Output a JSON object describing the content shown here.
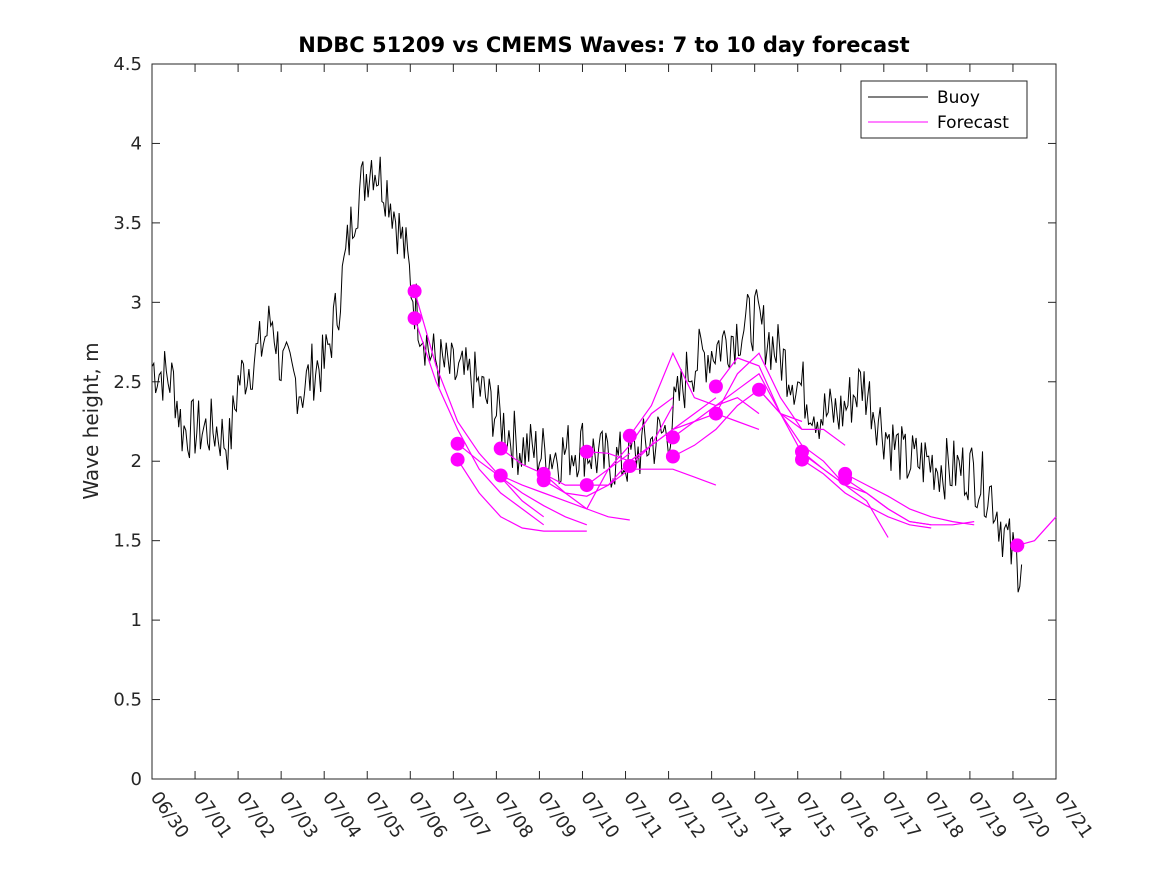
{
  "chart_data": {
    "type": "line",
    "title": "NDBC 51209 vs CMEMS Waves: 7 to 10 day forecast",
    "xlabel": "",
    "ylabel": "Wave height, m",
    "x_ticks": [
      "06/30",
      "07/01",
      "07/02",
      "07/03",
      "07/04",
      "07/05",
      "07/06",
      "07/07",
      "07/08",
      "07/09",
      "07/10",
      "07/11",
      "07/12",
      "07/13",
      "07/14",
      "07/15",
      "07/16",
      "07/17",
      "07/18",
      "07/19",
      "07/20",
      "07/21"
    ],
    "xlim_days": [
      0,
      21
    ],
    "ylim": [
      0,
      4.5
    ],
    "y_ticks": [
      0,
      0.5,
      1,
      1.5,
      2,
      2.5,
      3,
      3.5,
      4,
      4.5
    ],
    "y_tick_labels": [
      "0",
      "0.5",
      "1",
      "1.5",
      "2",
      "2.5",
      "3",
      "3.5",
      "4",
      "4.5"
    ],
    "grid": false,
    "legend_position": "top-right",
    "colors": {
      "buoy": "#000000",
      "forecast": "#ff00ff"
    },
    "series": [
      {
        "name": "Buoy",
        "x_days": [
          0,
          0.5,
          0.7,
          1,
          1.5,
          1.8,
          2,
          2.5,
          2.8,
          3,
          3.5,
          3.8,
          4,
          4.3,
          4.7,
          5.1,
          5.5,
          5.9,
          6.1,
          6.5,
          7,
          7.5,
          8,
          8.5,
          9,
          9.5,
          10,
          10.5,
          11,
          11.5,
          12,
          12.5,
          13,
          13.5,
          14,
          14.5,
          15,
          15.5,
          16,
          16.5,
          17,
          17.5,
          18,
          18.5,
          19,
          19.5,
          19.8,
          20,
          20.2
        ],
        "values": [
          2.6,
          2.5,
          2.2,
          2.2,
          2.2,
          2.1,
          2.5,
          2.7,
          2.9,
          2.6,
          2.45,
          2.6,
          2.6,
          2.95,
          3.6,
          3.9,
          3.7,
          3.3,
          3.0,
          2.65,
          2.55,
          2.5,
          2.3,
          2.1,
          2.05,
          2.05,
          2.1,
          2.0,
          2.0,
          2.1,
          2.2,
          2.6,
          2.7,
          2.8,
          2.9,
          2.7,
          2.5,
          2.3,
          2.3,
          2.5,
          2.2,
          2.0,
          2.0,
          1.95,
          1.95,
          1.8,
          1.55,
          1.4,
          1.35
        ]
      },
      {
        "name": "Forecast",
        "segments": [
          {
            "x_days": [
              6.1,
              6.6,
              7.1,
              7.6,
              8.1,
              8.6,
              9.1
            ],
            "values": [
              3.07,
              2.6,
              2.25,
              2.05,
              1.9,
              1.75,
              1.65
            ]
          },
          {
            "x_days": [
              6.1,
              6.6,
              7.1,
              7.6,
              8.1,
              8.6,
              9.1
            ],
            "values": [
              2.9,
              2.5,
              2.2,
              1.95,
              1.8,
              1.7,
              1.6
            ]
          },
          {
            "x_days": [
              7.1,
              7.6,
              8.1,
              8.6,
              9.1,
              9.6,
              10.1
            ],
            "values": [
              2.11,
              2.0,
              1.9,
              1.8,
              1.72,
              1.65,
              1.6
            ]
          },
          {
            "x_days": [
              7.1,
              7.6,
              8.1,
              8.6,
              9.1,
              9.6,
              10.1
            ],
            "values": [
              2.01,
              1.8,
              1.65,
              1.58,
              1.56,
              1.56,
              1.56
            ]
          },
          {
            "x_days": [
              8.1,
              8.6,
              9.1,
              9.6,
              10.1,
              10.6,
              11.1
            ],
            "values": [
              2.08,
              1.98,
              1.92,
              1.8,
              1.7,
              1.65,
              1.63
            ]
          },
          {
            "x_days": [
              8.1,
              8.6,
              9.1,
              9.6,
              10.1,
              10.6,
              11.1
            ],
            "values": [
              1.91,
              1.85,
              1.8,
              1.75,
              1.7,
              1.95,
              2.05
            ]
          },
          {
            "x_days": [
              9.1,
              9.6,
              10.1,
              10.6,
              11.1,
              11.6,
              12.1
            ],
            "values": [
              1.92,
              1.85,
              1.85,
              1.95,
              2.1,
              2.3,
              2.4
            ]
          },
          {
            "x_days": [
              9.1,
              9.6,
              10.1,
              10.6,
              11.1,
              11.6,
              12.1
            ],
            "values": [
              1.88,
              1.8,
              1.78,
              1.85,
              2.0,
              2.1,
              2.35
            ]
          },
          {
            "x_days": [
              10.1,
              10.6,
              11.1,
              11.6,
              12.1,
              12.6,
              13.1
            ],
            "values": [
              2.06,
              2.05,
              2.0,
              2.1,
              2.2,
              2.3,
              2.4
            ]
          },
          {
            "x_days": [
              10.1,
              10.6,
              11.1,
              11.6,
              12.1,
              12.6,
              13.1
            ],
            "values": [
              1.85,
              1.85,
              1.95,
              1.95,
              1.95,
              1.9,
              1.85
            ]
          },
          {
            "x_days": [
              11.1,
              11.6,
              12.1,
              12.6,
              13.1,
              13.6,
              14.1
            ],
            "values": [
              2.16,
              2.35,
              2.68,
              2.4,
              2.35,
              2.4,
              2.3
            ]
          },
          {
            "x_days": [
              11.1,
              11.6,
              12.1,
              12.6,
              13.1,
              13.6,
              14.1
            ],
            "values": [
              1.97,
              2.1,
              2.2,
              2.25,
              2.3,
              2.25,
              2.2
            ]
          },
          {
            "x_days": [
              12.1,
              12.6,
              13.1,
              13.6,
              14.1,
              14.6,
              15.1
            ],
            "values": [
              2.15,
              2.25,
              2.35,
              2.45,
              2.55,
              2.3,
              2.2
            ]
          },
          {
            "x_days": [
              12.1,
              12.6,
              13.1,
              13.6,
              14.1,
              14.6,
              15.1
            ],
            "values": [
              2.03,
              2.1,
              2.2,
              2.35,
              2.45,
              2.3,
              2.25
            ]
          },
          {
            "x_days": [
              13.1,
              13.6,
              14.1,
              14.6,
              15.1,
              15.6,
              16.1
            ],
            "values": [
              2.47,
              2.65,
              2.6,
              2.3,
              2.1,
              2.0,
              1.85
            ]
          },
          {
            "x_days": [
              13.1,
              13.6,
              14.1,
              14.6,
              15.1,
              15.6,
              16.1
            ],
            "values": [
              2.3,
              2.55,
              2.68,
              2.4,
              2.2,
              2.2,
              2.1
            ]
          },
          {
            "x_days": [
              14.1,
              14.6,
              15.1,
              15.6,
              16.1,
              16.6,
              17.1
            ],
            "values": [
              2.45,
              2.3,
              2.05,
              1.95,
              1.85,
              1.75,
              1.52
            ]
          },
          {
            "x_days": [
              15.1,
              15.6,
              16.1,
              16.6,
              17.1,
              17.6,
              18.1
            ],
            "values": [
              2.06,
              1.95,
              1.85,
              1.8,
              1.7,
              1.62,
              1.6
            ]
          },
          {
            "x_days": [
              15.1,
              15.6,
              16.1,
              16.6,
              17.1,
              17.6,
              18.1
            ],
            "values": [
              2.01,
              1.92,
              1.8,
              1.72,
              1.65,
              1.6,
              1.58
            ]
          },
          {
            "x_days": [
              16.1,
              16.6,
              17.1,
              17.6,
              18.1,
              18.6,
              19.1
            ],
            "values": [
              1.92,
              1.85,
              1.78,
              1.7,
              1.65,
              1.62,
              1.6
            ]
          },
          {
            "x_days": [
              16.1,
              16.6,
              17.1,
              17.6,
              18.1,
              18.6,
              19.1
            ],
            "values": [
              1.89,
              1.8,
              1.7,
              1.62,
              1.6,
              1.6,
              1.62
            ]
          },
          {
            "x_days": [
              20.1,
              20.5,
              21
            ],
            "values": [
              1.47,
              1.5,
              1.65
            ]
          }
        ],
        "markers": {
          "x_days": [
            6.1,
            6.1,
            7.1,
            7.1,
            8.1,
            8.1,
            9.1,
            9.1,
            10.1,
            10.1,
            11.1,
            11.1,
            12.1,
            12.1,
            13.1,
            13.1,
            14.1,
            15.1,
            15.1,
            16.1,
            16.1,
            20.1
          ],
          "values": [
            3.07,
            2.9,
            2.11,
            2.01,
            2.08,
            1.91,
            1.92,
            1.88,
            2.06,
            1.85,
            2.16,
            1.97,
            2.15,
            2.03,
            2.47,
            2.3,
            2.45,
            2.06,
            2.01,
            1.92,
            1.89,
            1.47
          ]
        }
      }
    ]
  }
}
